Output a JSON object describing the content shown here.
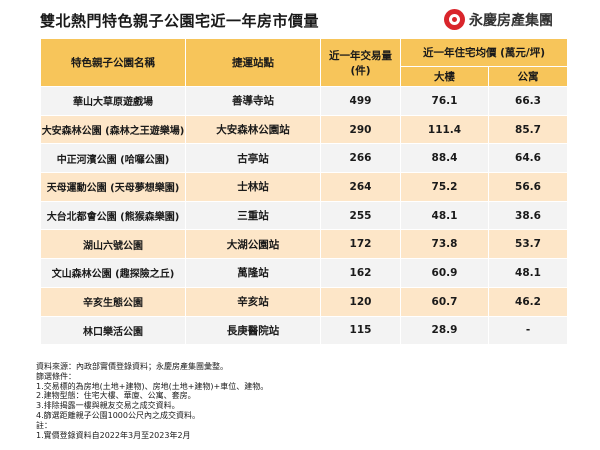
{
  "title": "雙北熱門特色親子公園宅近一年房市價量",
  "logo": {
    "text": "永慶房產集團",
    "brand_color": "#d9252b"
  },
  "table": {
    "headers": {
      "park": "特色親子公園名稱",
      "station": "捷運站點",
      "volume": "近一年交易量(件)",
      "price_group": "近一年住宅均價 (萬元/坪)",
      "building": "大樓",
      "apartment": "公寓"
    },
    "rows": [
      {
        "park": "華山大草原遊戲場",
        "station": "善導寺站",
        "volume": "499",
        "building": "76.1",
        "apartment": "66.3"
      },
      {
        "park": "大安森林公園 (森林之王遊樂場)",
        "station": "大安森林公園站",
        "volume": "290",
        "building": "111.4",
        "apartment": "85.7"
      },
      {
        "park": "中正河濱公園 (哈囉公園)",
        "station": "古亭站",
        "volume": "266",
        "building": "88.4",
        "apartment": "64.6"
      },
      {
        "park": "天母運動公園 (天母夢想樂園)",
        "station": "士林站",
        "volume": "264",
        "building": "75.2",
        "apartment": "56.6"
      },
      {
        "park": "大台北都會公園 (熊猴森樂園)",
        "station": "三重站",
        "volume": "255",
        "building": "48.1",
        "apartment": "38.6"
      },
      {
        "park": "湖山六號公園",
        "station": "大湖公園站",
        "volume": "172",
        "building": "73.8",
        "apartment": "53.7"
      },
      {
        "park": "文山森林公園 (趣探險之丘)",
        "station": "萬隆站",
        "volume": "162",
        "building": "60.9",
        "apartment": "48.1"
      },
      {
        "park": "辛亥生態公園",
        "station": "辛亥站",
        "volume": "120",
        "building": "60.7",
        "apartment": "46.2"
      },
      {
        "park": "林口樂活公園",
        "station": "長庚醫院站",
        "volume": "115",
        "building": "28.9",
        "apartment": "-"
      }
    ]
  },
  "notes": [
    "資料來源：內政部實價登錄資料；永慶房產集團彙整。",
    "篩選條件：",
    "1.交易標的為房地(土地+建物)、房地(土地+建物)+車位、建物。",
    "2.建物型態：住宅大樓、華廈、公寓、套房。",
    "3.排除揭露一樓與親友交易之成交資料。",
    "4.篩選距離親子公園1000公尺內之成交資料。",
    "註：",
    "1.實價登錄資料自2022年3月至2023年2月"
  ]
}
